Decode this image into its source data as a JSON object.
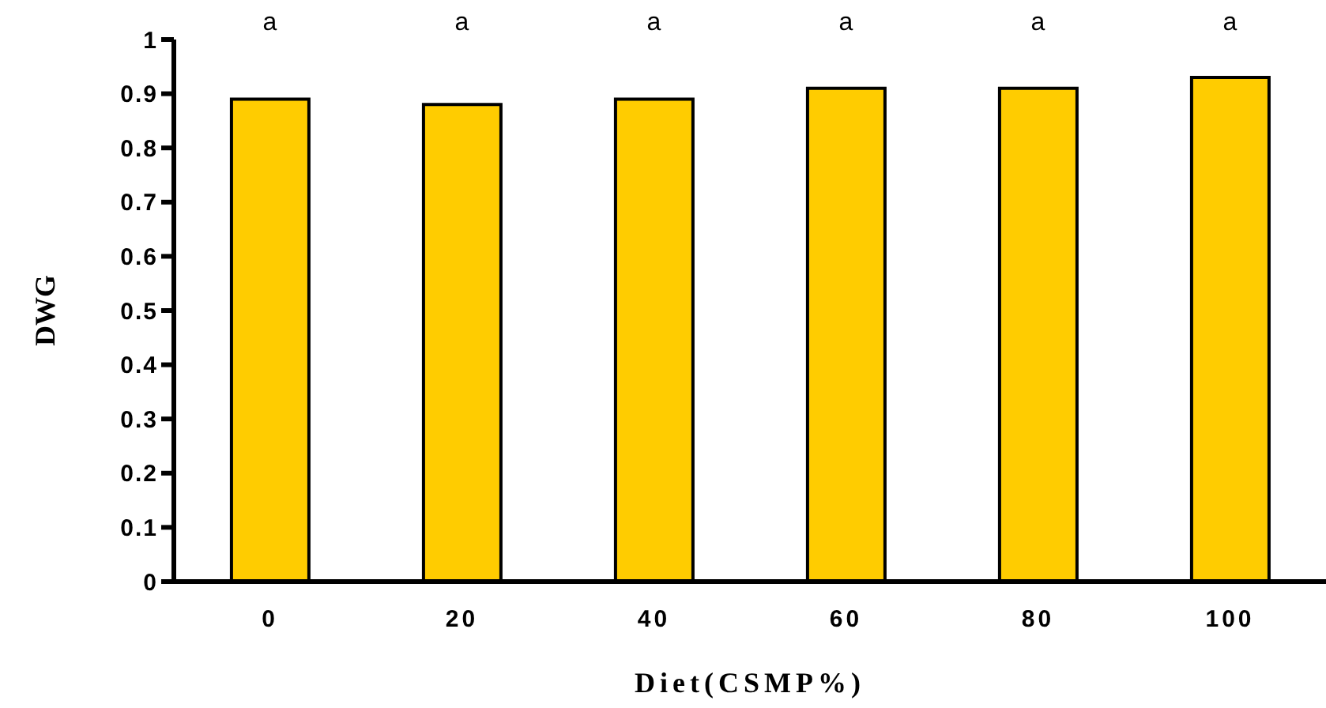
{
  "chart_data": {
    "type": "bar",
    "xlabel": "Diet(CSMP%)",
    "ylabel": "DWG",
    "categories": [
      "0",
      "20",
      "40",
      "60",
      "80",
      "100"
    ],
    "values": [
      0.89,
      0.88,
      0.89,
      0.91,
      0.91,
      0.93
    ],
    "color": "#ffcc00",
    "ylim": [
      0,
      1
    ],
    "yticks": [
      0,
      0.1,
      0.2,
      0.3,
      0.4,
      0.5,
      0.6,
      0.7,
      0.8,
      0.9,
      1
    ],
    "grid": false,
    "legend": false,
    "annotations": [
      "a",
      "a",
      "a",
      "a",
      "a",
      "a"
    ]
  }
}
